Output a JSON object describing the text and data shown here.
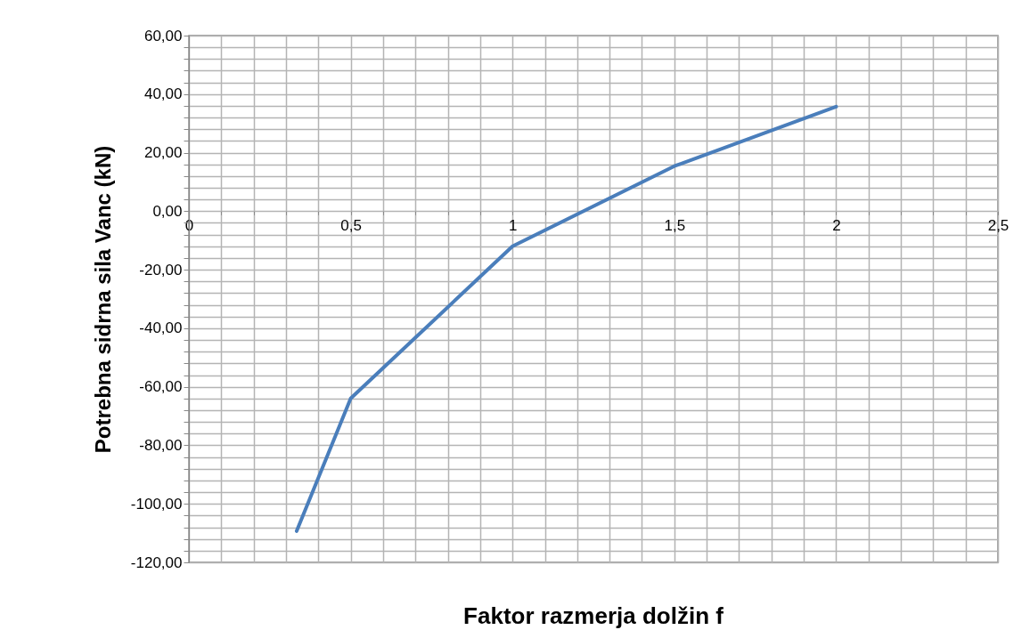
{
  "chart_data": {
    "type": "line",
    "xlabel": "Faktor razmerja dolžin f",
    "ylabel": "Potrebna sidrna sila Vanc (kN)",
    "x": [
      0.333,
      0.5,
      1,
      1.5,
      2
    ],
    "series": [
      {
        "color": "#4a7ebb",
        "values": [
          -109.3,
          -64,
          -12,
          15.4,
          35.7
        ]
      }
    ],
    "xlim": [
      0,
      2.5
    ],
    "ylim": [
      -120,
      60
    ],
    "xticks": [
      {
        "value": 0,
        "label": "0"
      },
      {
        "value": 0.1,
        "label": null
      },
      {
        "value": 0.2,
        "label": null
      },
      {
        "value": 0.3,
        "label": null
      },
      {
        "value": 0.4,
        "label": null
      },
      {
        "value": 0.5,
        "label": "0,5"
      },
      {
        "value": 0.6,
        "label": null
      },
      {
        "value": 0.7,
        "label": null
      },
      {
        "value": 0.8,
        "label": null
      },
      {
        "value": 0.9,
        "label": null
      },
      {
        "value": 1,
        "label": "1"
      },
      {
        "value": 1.1,
        "label": null
      },
      {
        "value": 1.2,
        "label": null
      },
      {
        "value": 1.3,
        "label": null
      },
      {
        "value": 1.4,
        "label": null
      },
      {
        "value": 1.5,
        "label": "1,5"
      },
      {
        "value": 1.6,
        "label": null
      },
      {
        "value": 1.7,
        "label": null
      },
      {
        "value": 1.8,
        "label": null
      },
      {
        "value": 1.9,
        "label": null
      },
      {
        "value": 2,
        "label": "2"
      },
      {
        "value": 2.1,
        "label": null
      },
      {
        "value": 2.2,
        "label": null
      },
      {
        "value": 2.3,
        "label": null
      },
      {
        "value": 2.4,
        "label": null
      },
      {
        "value": 2.5,
        "label": "2,5"
      }
    ],
    "yticks": [
      {
        "value": -120,
        "label": "-120,00"
      },
      {
        "value": -116,
        "label": null
      },
      {
        "value": -112,
        "label": null
      },
      {
        "value": -108,
        "label": null
      },
      {
        "value": -104,
        "label": null
      },
      {
        "value": -100,
        "label": "-100,00"
      },
      {
        "value": -96,
        "label": null
      },
      {
        "value": -92,
        "label": null
      },
      {
        "value": -88,
        "label": null
      },
      {
        "value": -84,
        "label": null
      },
      {
        "value": -80,
        "label": "-80,00"
      },
      {
        "value": -76,
        "label": null
      },
      {
        "value": -72,
        "label": null
      },
      {
        "value": -68,
        "label": null
      },
      {
        "value": -64,
        "label": null
      },
      {
        "value": -60,
        "label": "-60,00"
      },
      {
        "value": -56,
        "label": null
      },
      {
        "value": -52,
        "label": null
      },
      {
        "value": -48,
        "label": null
      },
      {
        "value": -44,
        "label": null
      },
      {
        "value": -40,
        "label": "-40,00"
      },
      {
        "value": -36,
        "label": null
      },
      {
        "value": -32,
        "label": null
      },
      {
        "value": -28,
        "label": null
      },
      {
        "value": -24,
        "label": null
      },
      {
        "value": -20,
        "label": "-20,00"
      },
      {
        "value": -16,
        "label": null
      },
      {
        "value": -12,
        "label": null
      },
      {
        "value": -8,
        "label": null
      },
      {
        "value": -4,
        "label": null
      },
      {
        "value": 0,
        "label": "0,00"
      },
      {
        "value": 4,
        "label": null
      },
      {
        "value": 8,
        "label": null
      },
      {
        "value": 12,
        "label": null
      },
      {
        "value": 16,
        "label": null
      },
      {
        "value": 20,
        "label": "20,00"
      },
      {
        "value": 24,
        "label": null
      },
      {
        "value": 28,
        "label": null
      },
      {
        "value": 32,
        "label": null
      },
      {
        "value": 36,
        "label": null
      },
      {
        "value": 40,
        "label": "40,00"
      },
      {
        "value": 44,
        "label": null
      },
      {
        "value": 48,
        "label": null
      },
      {
        "value": 52,
        "label": null
      },
      {
        "value": 56,
        "label": null
      },
      {
        "value": 60,
        "label": "60,00"
      }
    ],
    "grid": true,
    "marker": "none",
    "line_style": "solid"
  }
}
